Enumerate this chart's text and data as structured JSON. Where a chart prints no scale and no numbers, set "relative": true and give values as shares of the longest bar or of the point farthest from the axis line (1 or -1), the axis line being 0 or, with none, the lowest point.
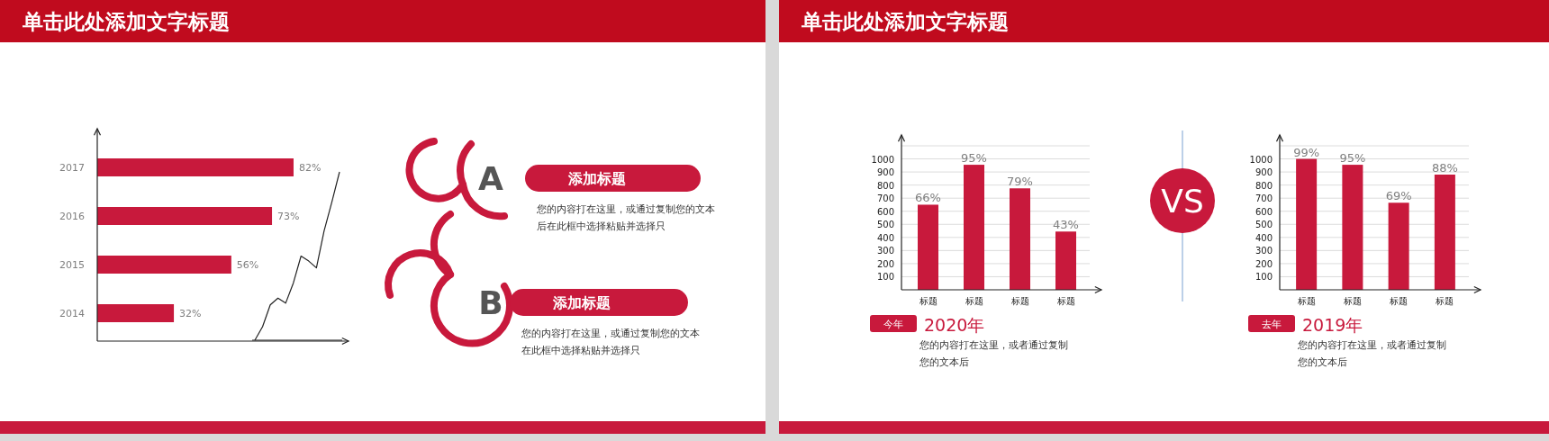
{
  "chart_data": [
    {
      "type": "other",
      "title": "单击此处添加文字标题"
    },
    {
      "type": "bar",
      "orientation": "horizontal",
      "categories": [
        "2017",
        "2016",
        "2015",
        "2014"
      ],
      "values": [
        82,
        73,
        56,
        32
      ],
      "value_labels": [
        "82%",
        "73%",
        "56%",
        "32%"
      ],
      "color": "#c8193c",
      "tick_labels": "y"
    },
    {
      "type": "line",
      "relative": true,
      "categories": [
        null,
        null,
        null,
        null,
        null,
        null,
        null,
        null,
        null,
        null,
        null,
        null
      ],
      "values": [
        0,
        0.08,
        0.21,
        0.25,
        0.22,
        0.34,
        0.5,
        0.47,
        0.43,
        0.65,
        0.82,
        1
      ],
      "color": "#222222"
    },
    {
      "type": "other",
      "annotations": [
        "A",
        "添加标题",
        "您的内容打在这里，或通过复制您的文本后在此框中选择粘贴并选择只",
        "B",
        "添加标题",
        "您的内容打在这里，或通过复制您的文本在此框中选择粘贴并选择只"
      ]
    },
    {
      "type": "other",
      "title": "单击此处添加文字标题"
    },
    {
      "type": "bar",
      "categories": [
        "标题",
        "标题",
        "标题",
        "标题"
      ],
      "values": [
        650,
        955,
        775,
        445
      ],
      "color": "#c8193c",
      "ylim": [
        0,
        1100
      ],
      "yticks": [
        100,
        200,
        300,
        400,
        500,
        600,
        700,
        800,
        900,
        1000,
        {
          "value": 1100,
          "label": null
        }
      ],
      "grid": "y",
      "annotations": [
        "66%",
        "95%",
        "79%",
        "43%",
        "今年",
        "2020年",
        "您的内容打在这里，或者通过复制您的文本后"
      ]
    },
    {
      "type": "other",
      "annotations": [
        "VS"
      ]
    },
    {
      "type": "bar",
      "categories": [
        "标题",
        "标题",
        "标题",
        "标题"
      ],
      "values": [
        1000,
        955,
        665,
        880
      ],
      "color": "#c8193c",
      "ylim": [
        0,
        1100
      ],
      "yticks": [
        100,
        200,
        300,
        400,
        500,
        600,
        700,
        800,
        900,
        1000,
        {
          "value": 1100,
          "label": null
        }
      ],
      "grid": "y",
      "annotations": [
        "99%",
        "95%",
        "69%",
        "88%",
        "去年",
        "2019年",
        "您的内容打在这里，或者通过复制您的文本后"
      ]
    }
  ]
}
